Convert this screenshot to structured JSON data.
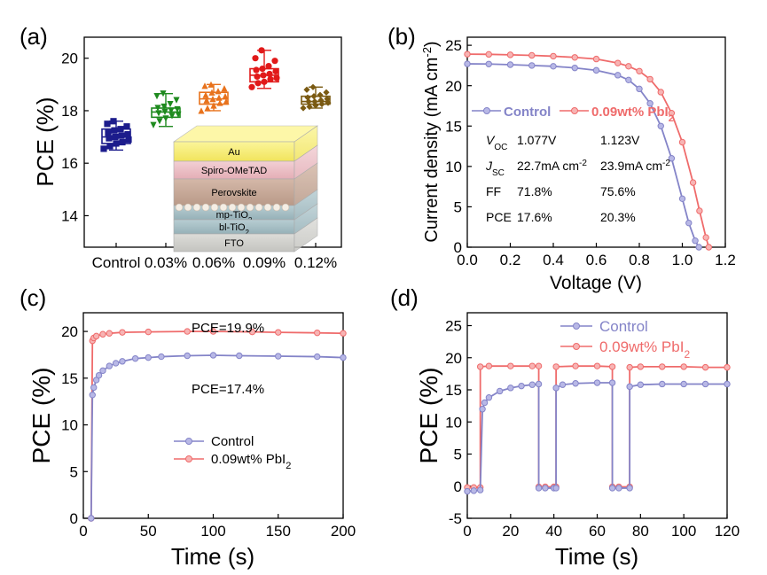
{
  "colors": {
    "control": "#8484c8",
    "pbi2": "#ef6b6b",
    "box_control": "#1c1c8c",
    "box_003": "#1e8a1e",
    "box_006": "#e8721c",
    "box_009": "#e11919",
    "box_012": "#7a5a12"
  },
  "chart_data": [
    {
      "panel_label": "(a)",
      "type": "box",
      "categories": [
        "Control",
        "0.03%",
        "0.06%",
        "0.09%",
        "0.12%"
      ],
      "ylabel": "PCE (%)",
      "ylim": [
        12.8,
        20.8
      ],
      "yticks": [
        "14",
        "16",
        "18",
        "20"
      ],
      "boxes": [
        {
          "category": "Control",
          "min": 16.5,
          "q1": 16.75,
          "median": 17.0,
          "q3": 17.3,
          "max": 17.6,
          "marker": "square",
          "points": [
            16.55,
            16.65,
            16.75,
            16.8,
            16.9,
            16.95,
            17.0,
            17.05,
            17.1,
            17.15,
            17.25,
            17.3,
            17.4,
            17.5,
            17.6
          ]
        },
        {
          "category": "0.03%",
          "min": 17.4,
          "q1": 17.75,
          "median": 17.95,
          "q3": 18.1,
          "max": 18.65,
          "marker": "triangle-down",
          "points": [
            17.45,
            17.6,
            17.7,
            17.8,
            17.85,
            17.9,
            17.95,
            18.0,
            18.05,
            18.1,
            18.15,
            18.25,
            18.4,
            18.55,
            18.65
          ]
        },
        {
          "category": "0.06%",
          "min": 18.0,
          "q1": 18.25,
          "median": 18.45,
          "q3": 18.7,
          "max": 19.0,
          "marker": "triangle-up",
          "points": [
            18.0,
            18.1,
            18.2,
            18.3,
            18.35,
            18.4,
            18.45,
            18.5,
            18.55,
            18.6,
            18.7,
            18.75,
            18.85,
            18.95,
            19.0
          ]
        },
        {
          "category": "0.09%",
          "min": 18.85,
          "q1": 19.1,
          "median": 19.35,
          "q3": 19.6,
          "max": 20.3,
          "marker": "circle",
          "points": [
            18.9,
            19.05,
            19.1,
            19.2,
            19.25,
            19.3,
            19.35,
            19.4,
            19.5,
            19.55,
            19.6,
            19.7,
            19.9,
            20.0,
            20.3
          ]
        },
        {
          "category": "0.12%",
          "min": 18.1,
          "q1": 18.25,
          "median": 18.35,
          "q3": 18.55,
          "max": 18.9,
          "marker": "diamond",
          "points": [
            18.1,
            18.15,
            18.2,
            18.25,
            18.3,
            18.35,
            18.35,
            18.4,
            18.45,
            18.5,
            18.55,
            18.6,
            18.7,
            18.8,
            18.9
          ]
        }
      ],
      "inset_layers": [
        "Au",
        "Spiro-OMeTAD",
        "Perovskite",
        "mp-TiO₂",
        "bl-TiO₂",
        "FTO"
      ]
    },
    {
      "panel_label": "(b)",
      "type": "line",
      "xlabel": "Voltage (V)",
      "ylabel": "Current density (mA cm⁻²)",
      "xlim": [
        0,
        1.2
      ],
      "ylim": [
        0,
        26
      ],
      "xticks": [
        "0.0",
        "0.2",
        "0.4",
        "0.6",
        "0.8",
        "1.0",
        "1.2"
      ],
      "yticks": [
        "0",
        "5",
        "10",
        "15",
        "20",
        "25"
      ],
      "series": [
        {
          "name": "Control",
          "jsc": 22.7,
          "voc": 1.077,
          "x": [
            0,
            0.1,
            0.2,
            0.3,
            0.4,
            0.5,
            0.6,
            0.7,
            0.75,
            0.8,
            0.85,
            0.9,
            0.95,
            1.0,
            1.03,
            1.06,
            1.077
          ],
          "y": [
            22.7,
            22.68,
            22.6,
            22.5,
            22.4,
            22.2,
            21.9,
            21.3,
            20.7,
            19.6,
            17.8,
            15.0,
            11.0,
            6.0,
            3.0,
            0.8,
            0
          ]
        },
        {
          "name": "0.09wt% PbI₂",
          "jsc": 23.9,
          "voc": 1.123,
          "x": [
            0,
            0.1,
            0.2,
            0.3,
            0.4,
            0.5,
            0.6,
            0.7,
            0.75,
            0.8,
            0.85,
            0.9,
            0.95,
            1.0,
            1.05,
            1.08,
            1.11,
            1.123
          ],
          "y": [
            23.9,
            23.88,
            23.82,
            23.75,
            23.65,
            23.5,
            23.3,
            22.8,
            22.4,
            21.8,
            20.8,
            19.2,
            16.6,
            13.0,
            8.0,
            4.5,
            1.2,
            0
          ]
        }
      ],
      "table": {
        "rows": [
          {
            "label": "V",
            "sub": "OC",
            "control": "1.077V",
            "pbi2": "1.123V"
          },
          {
            "label": "J",
            "sub": "SC",
            "control": "22.7mA cm",
            "control_sup": "-2",
            "pbi2": "23.9mA cm",
            "pbi2_sup": "-2"
          },
          {
            "label": "FF",
            "sub": "",
            "control": "71.8%",
            "pbi2": "75.6%"
          },
          {
            "label": "PCE",
            "sub": "",
            "control": "17.6%",
            "pbi2": "20.3%"
          }
        ]
      }
    },
    {
      "panel_label": "(c)",
      "type": "line",
      "xlabel": "Time (s)",
      "ylabel": "PCE (%)",
      "xlim": [
        0,
        200
      ],
      "ylim": [
        0,
        22
      ],
      "xticks": [
        "0",
        "50",
        "100",
        "150",
        "200"
      ],
      "yticks": [
        "0",
        "5",
        "10",
        "15",
        "20"
      ],
      "annotations": [
        "PCE=19.9%",
        "PCE=17.4%"
      ],
      "series": [
        {
          "name": "Control",
          "x": [
            6,
            7,
            8,
            10,
            12,
            15,
            20,
            25,
            30,
            40,
            50,
            60,
            80,
            100,
            120,
            150,
            180,
            200
          ],
          "y": [
            0,
            13.2,
            14.0,
            14.8,
            15.3,
            15.8,
            16.3,
            16.6,
            16.8,
            17.1,
            17.2,
            17.3,
            17.4,
            17.45,
            17.4,
            17.35,
            17.3,
            17.2
          ]
        },
        {
          "name": "0.09wt% PbI₂",
          "x": [
            6,
            7,
            8,
            10,
            15,
            20,
            30,
            50,
            80,
            100,
            130,
            150,
            180,
            200
          ],
          "y": [
            0,
            19.0,
            19.3,
            19.5,
            19.7,
            19.8,
            19.9,
            19.95,
            20.0,
            20.0,
            19.95,
            19.9,
            19.85,
            19.8
          ]
        }
      ],
      "legend": "lower-center"
    },
    {
      "panel_label": "(d)",
      "type": "line",
      "xlabel": "Time (s)",
      "ylabel": "PCE (%)",
      "xlim": [
        0,
        120
      ],
      "ylim": [
        -5,
        27
      ],
      "xticks": [
        "0",
        "20",
        "40",
        "60",
        "80",
        "100",
        "120"
      ],
      "yticks": [
        "-5",
        "0",
        "5",
        "10",
        "15",
        "20",
        "25"
      ],
      "series": [
        {
          "name": "Control",
          "x": [
            0,
            3,
            6,
            7,
            8,
            10,
            15,
            20,
            25,
            30,
            33,
            33.01,
            36,
            40,
            41,
            41.01,
            44,
            50,
            60,
            67,
            67.01,
            70,
            75,
            75.01,
            80,
            90,
            100,
            110,
            120
          ],
          "y": [
            -0.8,
            -0.7,
            -0.6,
            12.0,
            13.0,
            13.8,
            14.8,
            15.3,
            15.6,
            15.8,
            15.9,
            -0.3,
            -0.3,
            -0.3,
            -0.3,
            15.3,
            15.8,
            16.0,
            16.1,
            16.1,
            -0.3,
            -0.3,
            -0.3,
            15.5,
            15.8,
            15.9,
            15.9,
            15.9,
            15.9
          ]
        },
        {
          "name": "0.09wt% PbI₂",
          "x": [
            0,
            3,
            6,
            6.01,
            10,
            20,
            30,
            33,
            33.01,
            36,
            40,
            41,
            41.01,
            50,
            60,
            67,
            67.01,
            70,
            75,
            75.01,
            80,
            90,
            100,
            110,
            120
          ],
          "y": [
            -0.2,
            -0.2,
            -0.2,
            18.6,
            18.7,
            18.7,
            18.7,
            18.7,
            -0.1,
            -0.1,
            -0.1,
            -0.1,
            18.6,
            18.7,
            18.7,
            18.6,
            -0.1,
            -0.1,
            -0.1,
            18.5,
            18.6,
            18.6,
            18.6,
            18.5,
            18.5
          ]
        }
      ],
      "legend": "top-left"
    }
  ]
}
